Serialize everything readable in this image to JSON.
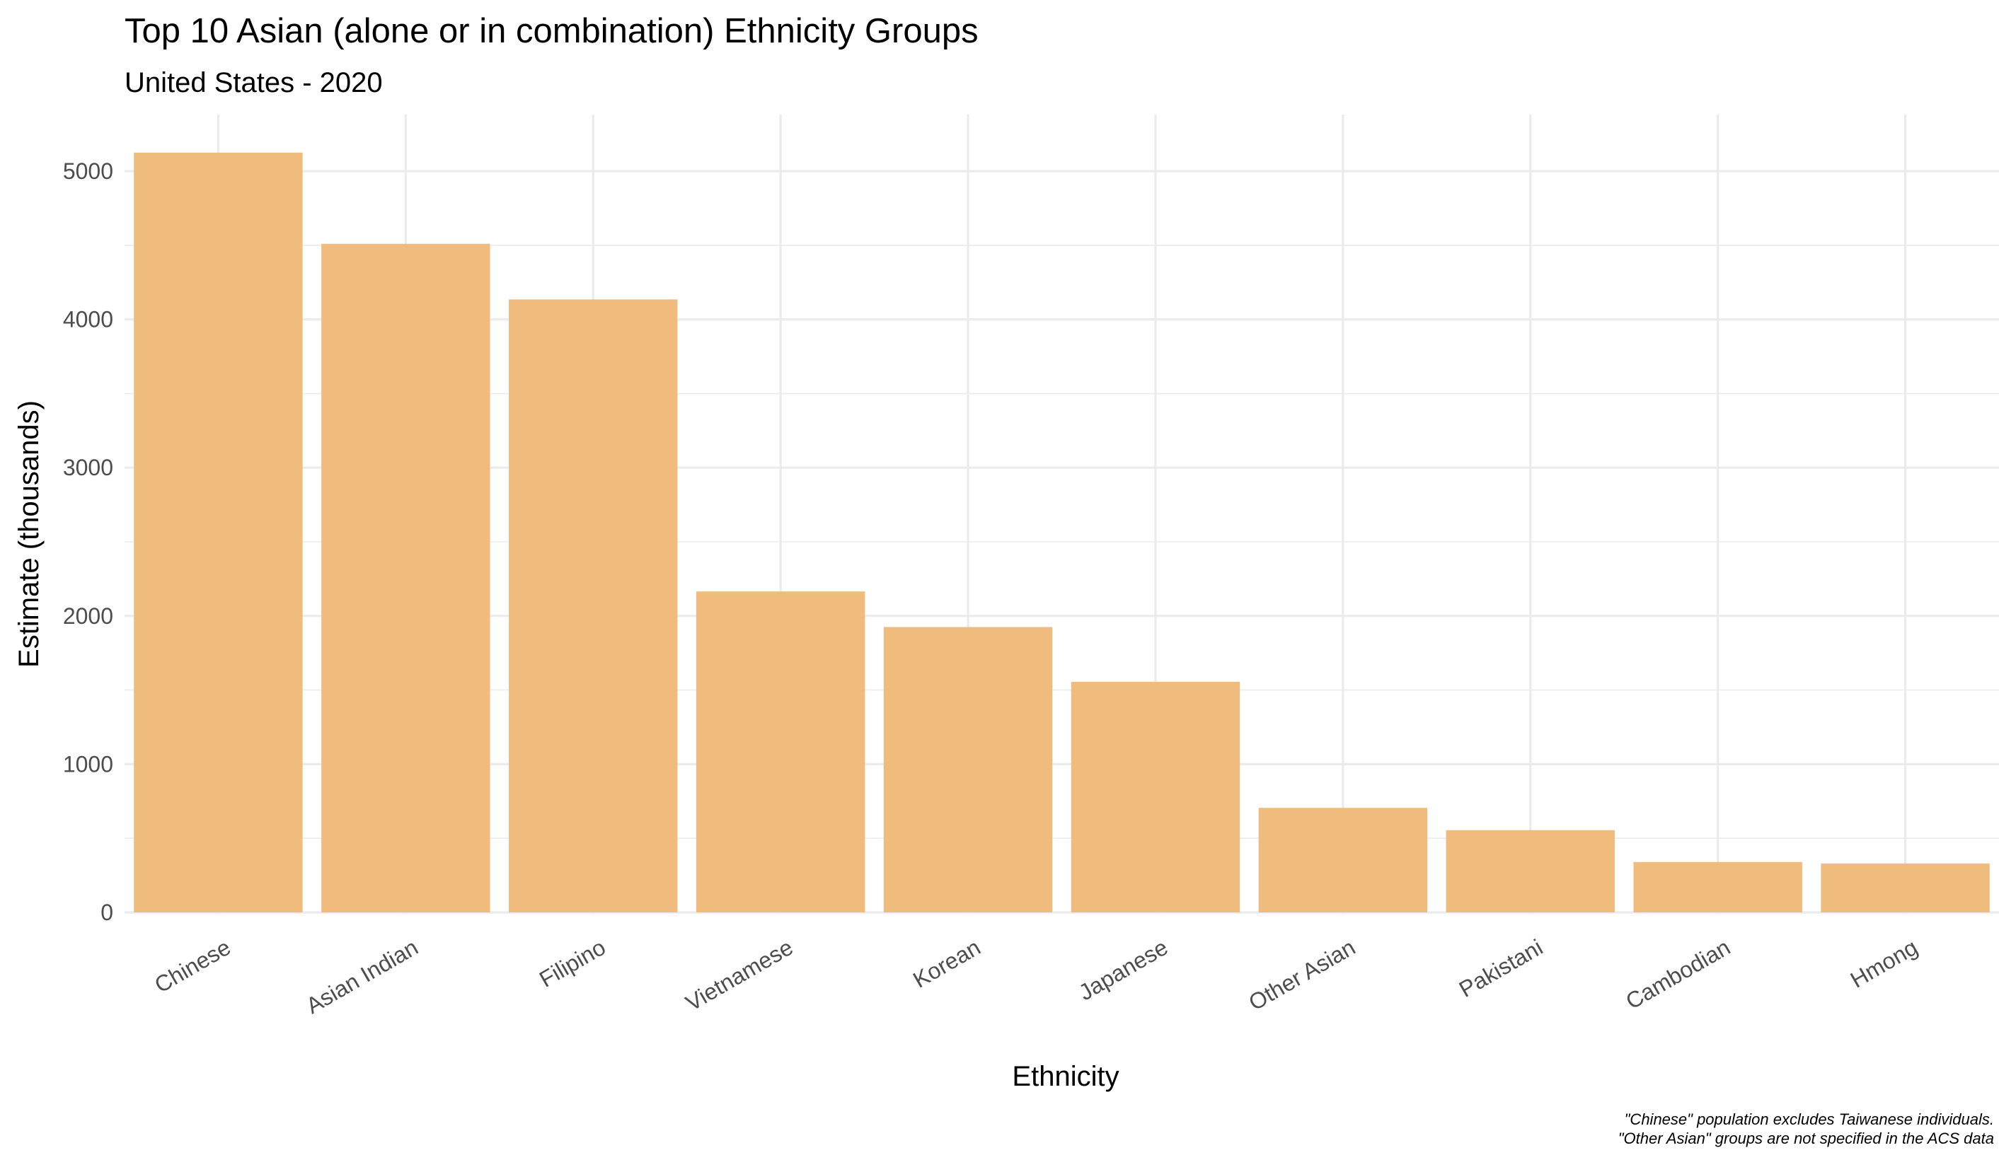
{
  "chart_data": {
    "type": "bar",
    "title": "Top 10 Asian (alone or in combination) Ethnicity Groups",
    "subtitle": "United States - 2020",
    "xlabel": "Ethnicity",
    "ylabel": "Estimate (thousands)",
    "categories": [
      "Chinese",
      "Asian Indian",
      "Filipino",
      "Vietnamese",
      "Korean",
      "Japanese",
      "Other Asian",
      "Pakistani",
      "Cambodian",
      "Hmong"
    ],
    "values": [
      5125,
      4510,
      4135,
      2165,
      1925,
      1555,
      705,
      555,
      340,
      330
    ],
    "ylim": [
      0,
      5380
    ],
    "yticks": [
      0,
      1000,
      2000,
      3000,
      4000,
      5000
    ],
    "ytick_labels": [
      "0",
      "1000",
      "2000",
      "3000",
      "4000",
      "5000"
    ],
    "grid": true,
    "bar_color": "#f0bc7e",
    "caption_lines": [
      "\"Chinese\" population excludes Taiwanese individuals.",
      "\"Other Asian\" groups are not specified in the ACS data"
    ]
  }
}
